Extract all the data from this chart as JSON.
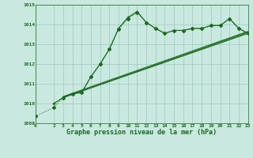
{
  "xlabel": "Graphe pression niveau de la mer (hPa)",
  "background_color": "#c8e8e0",
  "grid_color": "#a0c8c0",
  "line_color": "#1a6b1a",
  "xlim": [
    0,
    23
  ],
  "ylim": [
    1009,
    1015
  ],
  "yticks": [
    1009,
    1010,
    1011,
    1012,
    1013,
    1014,
    1015
  ],
  "xticks": [
    0,
    2,
    3,
    4,
    5,
    6,
    7,
    8,
    9,
    10,
    11,
    12,
    13,
    14,
    15,
    16,
    17,
    18,
    19,
    20,
    21,
    22,
    23
  ],
  "series_dotted_diamond": {
    "x": [
      0,
      2,
      3,
      4,
      5,
      6,
      7,
      8,
      9,
      10,
      11,
      12,
      13,
      14,
      15,
      16,
      17,
      18,
      19,
      20,
      21,
      22,
      23
    ],
    "y": [
      1009.35,
      1009.8,
      1010.3,
      1010.5,
      1010.55,
      1011.35,
      1012.0,
      1012.75,
      1013.75,
      1014.3,
      1014.6,
      1014.1,
      1013.8,
      1013.55,
      1013.7,
      1013.7,
      1013.8,
      1013.8,
      1013.95,
      1013.95,
      1014.3,
      1013.8,
      1013.55
    ]
  },
  "series_solid_cross": {
    "x": [
      2,
      3,
      4,
      5,
      6,
      7,
      8,
      9,
      10,
      11,
      12,
      13,
      14,
      15,
      16,
      17,
      18,
      19,
      20,
      21,
      22,
      23
    ],
    "y": [
      1010.0,
      1010.3,
      1010.5,
      1010.55,
      1011.35,
      1012.0,
      1012.75,
      1013.8,
      1014.35,
      1014.65,
      1014.1,
      1013.8,
      1013.55,
      1013.7,
      1013.7,
      1013.8,
      1013.8,
      1013.95,
      1013.95,
      1014.3,
      1013.8,
      1013.55
    ]
  },
  "straight_line1": {
    "x": [
      3,
      23
    ],
    "y": [
      1010.3,
      1013.6
    ]
  },
  "straight_line2": {
    "x": [
      3,
      23
    ],
    "y": [
      1010.35,
      1013.65
    ]
  },
  "straight_line3": {
    "x": [
      3,
      23
    ],
    "y": [
      1010.3,
      1013.55
    ]
  }
}
